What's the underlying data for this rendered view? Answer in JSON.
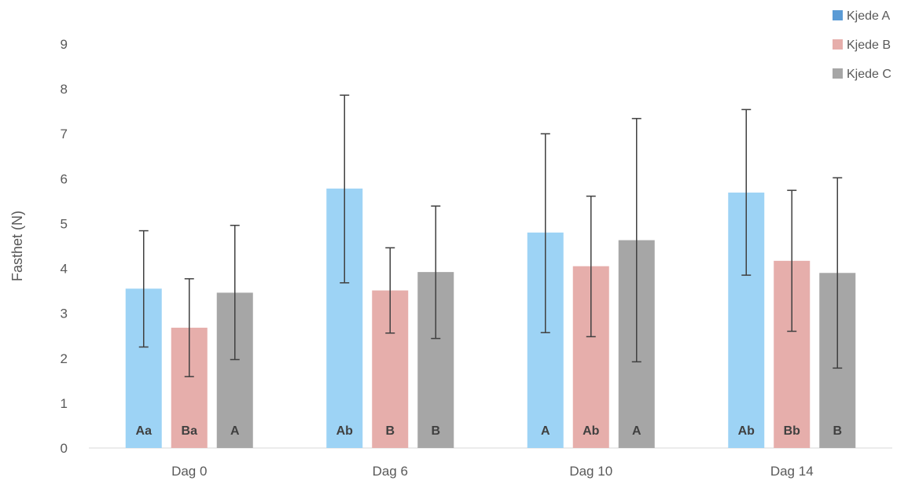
{
  "chart_data": {
    "type": "bar",
    "title": "",
    "xlabel": "",
    "ylabel": "Fasthet (N)",
    "ylim": [
      0,
      9
    ],
    "yticks": [
      0,
      1,
      2,
      3,
      4,
      5,
      6,
      7,
      8,
      9
    ],
    "grid": false,
    "legend_position": "top-right",
    "categories": [
      "Dag 0",
      "Dag 6",
      "Dag 10",
      "Dag 14"
    ],
    "series": [
      {
        "name": "Kjede A",
        "bar_color": "#9dd3f5",
        "legend_color": "#5b9bd5",
        "values": [
          3.55,
          5.78,
          4.8,
          5.69
        ],
        "err_low": [
          2.25,
          3.68,
          2.57,
          3.85
        ],
        "err_high": [
          4.84,
          7.86,
          7.0,
          7.54
        ],
        "labels": [
          "Aa",
          "Ab",
          "A",
          "Ab"
        ]
      },
      {
        "name": "Kjede B",
        "bar_color": "#e6aeab",
        "legend_color": "#e6aeab",
        "values": [
          2.68,
          3.51,
          4.05,
          4.17
        ],
        "err_low": [
          1.59,
          2.56,
          2.48,
          2.6
        ],
        "err_high": [
          3.77,
          4.46,
          5.61,
          5.74
        ],
        "labels": [
          "Ba",
          "B",
          "Ab",
          "Bb"
        ]
      },
      {
        "name": "Kjede C",
        "bar_color": "#a6a6a6",
        "legend_color": "#a6a6a6",
        "values": [
          3.46,
          3.92,
          4.63,
          3.9
        ],
        "err_low": [
          1.97,
          2.44,
          1.92,
          1.78
        ],
        "err_high": [
          4.96,
          5.39,
          7.34,
          6.02
        ],
        "labels": [
          "A",
          "B",
          "A",
          "B"
        ]
      }
    ]
  }
}
